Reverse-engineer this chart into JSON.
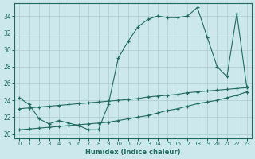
{
  "xlabel": "Humidex (Indice chaleur)",
  "ylabel": "",
  "bg_color": "#cce8ec",
  "grid_color": "#aaccd0",
  "line_color": "#1e6b5e",
  "x": [
    0,
    1,
    2,
    3,
    4,
    5,
    6,
    7,
    8,
    9,
    10,
    11,
    12,
    13,
    14,
    15,
    16,
    17,
    18,
    19,
    20,
    21,
    22,
    23
  ],
  "line1": [
    24.3,
    23.5,
    21.8,
    21.2,
    21.6,
    21.3,
    21.0,
    20.5,
    20.5,
    23.5,
    29.0,
    31.0,
    32.7,
    33.6,
    34.0,
    33.8,
    33.8,
    34.0,
    35.0,
    31.5,
    28.0,
    26.8,
    34.3,
    25.6
  ],
  "line2": [
    23.0,
    23.1,
    23.2,
    23.3,
    23.4,
    23.5,
    23.6,
    23.7,
    23.8,
    23.9,
    24.0,
    24.1,
    24.2,
    24.4,
    24.5,
    24.6,
    24.7,
    24.9,
    25.0,
    25.1,
    25.2,
    25.3,
    25.4,
    25.5
  ],
  "line3": [
    20.5,
    20.6,
    20.7,
    20.8,
    20.9,
    21.0,
    21.1,
    21.2,
    21.3,
    21.4,
    21.6,
    21.8,
    22.0,
    22.2,
    22.5,
    22.8,
    23.0,
    23.3,
    23.6,
    23.8,
    24.0,
    24.3,
    24.6,
    25.0
  ],
  "ylim": [
    19.5,
    35.5
  ],
  "xlim": [
    -0.5,
    23.5
  ],
  "yticks": [
    20,
    22,
    24,
    26,
    28,
    30,
    32,
    34
  ],
  "xticks": [
    0,
    1,
    2,
    3,
    4,
    5,
    6,
    7,
    8,
    9,
    10,
    11,
    12,
    13,
    14,
    15,
    16,
    17,
    18,
    19,
    20,
    21,
    22,
    23
  ]
}
